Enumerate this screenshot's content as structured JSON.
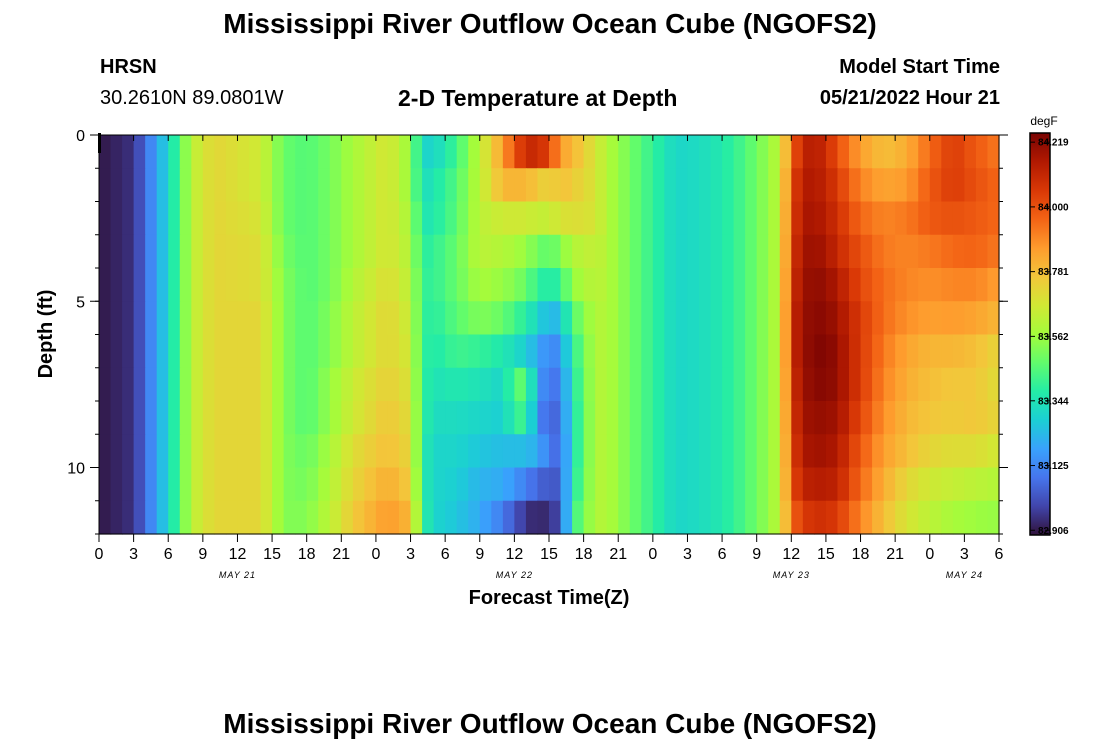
{
  "header": {
    "title": "Mississippi River Outflow Ocean Cube (NGOFS2)",
    "station_name": "HRSN",
    "station_coords": "30.2610N  89.0801W",
    "subtitle": "2-D Temperature at Depth",
    "model_start_label": "Model Start Time",
    "model_start_value": "05/21/2022 Hour 21"
  },
  "footer": {
    "title": "Mississippi River Outflow Ocean Cube (NGOFS2)"
  },
  "colors": {
    "colormap": [
      "#30123b",
      "#4145ab",
      "#4675ed",
      "#39a2fc",
      "#1bcfd4",
      "#24eca6",
      "#61fc6c",
      "#a4fc3b",
      "#d1e834",
      "#f3c63a",
      "#fe9b2d",
      "#f36315",
      "#d93806",
      "#b11901",
      "#7a0402"
    ]
  },
  "chart_data": {
    "type": "heatmap",
    "title": "2-D Temperature at Depth",
    "xlabel": "Forecast Time(Z)",
    "ylabel": "Depth (ft)",
    "x_range_hours_from_start": [
      0,
      78
    ],
    "xtick_labels": [
      "0",
      "3",
      "6",
      "9",
      "12",
      "15",
      "18",
      "21",
      "0",
      "3",
      "6",
      "9",
      "12",
      "15",
      "18",
      "21",
      "0",
      "3",
      "6",
      "9",
      "12",
      "15",
      "18",
      "21",
      "0",
      "3",
      "6"
    ],
    "date_labels": [
      {
        "hour": 12,
        "label": "MAY 21"
      },
      {
        "hour": 36,
        "label": "MAY 22"
      },
      {
        "hour": 60,
        "label": "MAY 23"
      },
      {
        "hour": 75,
        "label": "MAY 24"
      }
    ],
    "yticks": [
      0,
      5,
      10
    ],
    "ylim": [
      0,
      12
    ],
    "depth_levels_ft": [
      0.5,
      1.5,
      2.5,
      3.5,
      4.5,
      5.5,
      6.5,
      7.5,
      8.5,
      9.5,
      10.5,
      11.5
    ],
    "colorbar": {
      "unit": "degF",
      "min": 82.89,
      "max": 84.25,
      "ticks": [
        "84.219",
        "84.000",
        "83.781",
        "83.562",
        "83.344",
        "83.125",
        "82.906"
      ]
    },
    "time_control_points_hours": [
      0,
      3,
      6,
      7,
      8,
      10,
      14,
      16,
      18,
      20,
      22,
      25,
      27,
      28,
      29,
      31,
      33,
      35,
      36,
      37,
      38,
      39,
      40,
      41,
      43,
      44,
      46,
      48,
      50,
      52,
      54,
      56,
      58,
      59,
      60,
      61,
      62,
      63,
      64,
      66,
      68,
      70,
      72,
      74,
      76,
      78
    ],
    "values": [
      [
        82.9,
        82.95,
        83.3,
        83.45,
        83.62,
        83.72,
        83.66,
        83.48,
        83.45,
        83.5,
        83.58,
        83.68,
        83.55,
        83.3,
        83.3,
        83.42,
        83.62,
        83.85,
        83.99,
        84.1,
        84.1,
        84.03,
        83.85,
        83.8,
        83.68,
        83.6,
        83.5,
        83.4,
        83.3,
        83.32,
        83.36,
        83.44,
        83.55,
        83.62,
        83.95,
        84.12,
        84.14,
        84.1,
        84.0,
        83.85,
        83.78,
        83.82,
        83.95,
        84.05,
        83.98,
        83.92
      ],
      [
        82.9,
        82.95,
        83.3,
        83.45,
        83.62,
        83.72,
        83.66,
        83.48,
        83.45,
        83.5,
        83.58,
        83.68,
        83.55,
        83.32,
        83.35,
        83.45,
        83.62,
        83.8,
        83.8,
        83.8,
        83.76,
        83.72,
        83.78,
        83.75,
        83.68,
        83.6,
        83.5,
        83.4,
        83.3,
        83.32,
        83.36,
        83.44,
        83.55,
        83.62,
        84.0,
        84.15,
        84.15,
        84.12,
        84.05,
        83.9,
        83.84,
        83.86,
        83.98,
        84.05,
        84.0,
        83.95
      ],
      [
        82.9,
        82.95,
        83.3,
        83.45,
        83.62,
        83.72,
        83.68,
        83.48,
        83.45,
        83.5,
        83.58,
        83.68,
        83.58,
        83.35,
        83.36,
        83.46,
        83.62,
        83.66,
        83.66,
        83.66,
        83.64,
        83.64,
        83.68,
        83.7,
        83.68,
        83.6,
        83.5,
        83.4,
        83.3,
        83.32,
        83.36,
        83.44,
        83.55,
        83.62,
        84.02,
        84.16,
        84.17,
        84.14,
        84.08,
        83.95,
        83.9,
        83.92,
        83.98,
        84.0,
        83.98,
        83.95
      ],
      [
        82.9,
        82.95,
        83.3,
        83.45,
        83.62,
        83.72,
        83.7,
        83.5,
        83.45,
        83.5,
        83.58,
        83.68,
        83.6,
        83.38,
        83.4,
        83.48,
        83.62,
        83.6,
        83.58,
        83.55,
        83.5,
        83.46,
        83.52,
        83.6,
        83.64,
        83.6,
        83.5,
        83.4,
        83.3,
        83.32,
        83.36,
        83.44,
        83.55,
        83.62,
        84.04,
        84.18,
        84.19,
        84.17,
        84.1,
        84.0,
        83.92,
        83.9,
        83.92,
        83.95,
        83.96,
        83.92
      ],
      [
        82.9,
        82.95,
        83.3,
        83.45,
        83.62,
        83.72,
        83.7,
        83.52,
        83.45,
        83.5,
        83.6,
        83.7,
        83.62,
        83.4,
        83.4,
        83.48,
        83.58,
        83.55,
        83.52,
        83.48,
        83.4,
        83.36,
        83.4,
        83.55,
        83.62,
        83.6,
        83.5,
        83.4,
        83.3,
        83.32,
        83.36,
        83.44,
        83.55,
        83.62,
        84.06,
        84.19,
        84.21,
        84.2,
        84.15,
        84.02,
        83.94,
        83.9,
        83.88,
        83.9,
        83.9,
        83.85
      ],
      [
        82.9,
        82.95,
        83.3,
        83.45,
        83.62,
        83.72,
        83.72,
        83.52,
        83.45,
        83.52,
        83.62,
        83.72,
        83.64,
        83.4,
        83.38,
        83.46,
        83.52,
        83.48,
        83.42,
        83.38,
        83.3,
        83.22,
        83.25,
        83.45,
        83.6,
        83.6,
        83.5,
        83.4,
        83.3,
        83.32,
        83.36,
        83.44,
        83.55,
        83.62,
        84.08,
        84.2,
        84.22,
        84.22,
        84.18,
        84.05,
        83.94,
        83.88,
        83.85,
        83.86,
        83.84,
        83.8
      ],
      [
        82.9,
        82.95,
        83.3,
        83.45,
        83.62,
        83.72,
        83.72,
        83.52,
        83.45,
        83.52,
        83.62,
        83.72,
        83.66,
        83.4,
        83.36,
        83.42,
        83.4,
        83.36,
        83.32,
        83.28,
        83.2,
        83.12,
        83.15,
        83.38,
        83.6,
        83.6,
        83.5,
        83.4,
        83.3,
        83.32,
        83.36,
        83.44,
        83.55,
        83.62,
        84.08,
        84.2,
        84.23,
        84.24,
        84.2,
        84.05,
        83.92,
        83.84,
        83.8,
        83.8,
        83.78,
        83.72
      ],
      [
        82.9,
        82.95,
        83.3,
        83.45,
        83.62,
        83.72,
        83.72,
        83.52,
        83.45,
        83.55,
        83.65,
        83.74,
        83.68,
        83.4,
        83.34,
        83.36,
        83.34,
        83.3,
        83.45,
        83.48,
        83.18,
        83.08,
        83.1,
        83.35,
        83.6,
        83.6,
        83.5,
        83.4,
        83.3,
        83.32,
        83.36,
        83.44,
        83.55,
        83.62,
        84.06,
        84.19,
        84.22,
        84.23,
        84.2,
        84.05,
        83.9,
        83.82,
        83.78,
        83.76,
        83.76,
        83.7
      ],
      [
        82.9,
        82.95,
        83.3,
        83.45,
        83.62,
        83.72,
        83.72,
        83.52,
        83.45,
        83.55,
        83.66,
        83.76,
        83.7,
        83.4,
        83.32,
        83.32,
        83.3,
        83.28,
        83.4,
        83.42,
        83.14,
        83.04,
        83.08,
        83.33,
        83.6,
        83.6,
        83.5,
        83.4,
        83.3,
        83.32,
        83.36,
        83.44,
        83.55,
        83.62,
        84.04,
        84.18,
        84.2,
        84.2,
        84.18,
        84.02,
        83.88,
        83.8,
        83.76,
        83.75,
        83.76,
        83.72
      ],
      [
        82.9,
        82.95,
        83.3,
        83.45,
        83.62,
        83.72,
        83.72,
        83.52,
        83.48,
        83.58,
        83.7,
        83.78,
        83.72,
        83.38,
        83.3,
        83.3,
        83.26,
        83.24,
        83.24,
        83.24,
        83.2,
        83.1,
        83.05,
        83.33,
        83.6,
        83.6,
        83.5,
        83.4,
        83.3,
        83.32,
        83.36,
        83.44,
        83.55,
        83.62,
        84.02,
        84.16,
        84.18,
        84.18,
        84.15,
        83.98,
        83.85,
        83.78,
        83.72,
        83.7,
        83.7,
        83.66
      ],
      [
        82.9,
        82.95,
        83.3,
        83.45,
        83.62,
        83.72,
        83.72,
        83.52,
        83.5,
        83.6,
        83.72,
        83.82,
        83.75,
        83.38,
        83.3,
        83.28,
        83.22,
        83.2,
        83.16,
        83.1,
        83.06,
        83.02,
        83.04,
        83.35,
        83.6,
        83.6,
        83.5,
        83.4,
        83.3,
        83.32,
        83.36,
        83.44,
        83.55,
        83.62,
        84.0,
        84.12,
        84.14,
        84.14,
        84.12,
        83.95,
        83.82,
        83.72,
        83.66,
        83.64,
        83.62,
        83.6
      ],
      [
        82.9,
        82.95,
        83.3,
        83.45,
        83.62,
        83.72,
        83.72,
        83.52,
        83.52,
        83.62,
        83.75,
        83.86,
        83.8,
        83.4,
        83.3,
        83.26,
        83.2,
        83.1,
        83.02,
        82.96,
        82.92,
        82.95,
        83.0,
        83.4,
        83.6,
        83.6,
        83.5,
        83.4,
        83.3,
        83.32,
        83.36,
        83.44,
        83.55,
        83.62,
        83.95,
        84.05,
        84.08,
        84.08,
        84.05,
        83.9,
        83.78,
        83.68,
        83.62,
        83.58,
        83.56,
        83.55
      ]
    ]
  }
}
